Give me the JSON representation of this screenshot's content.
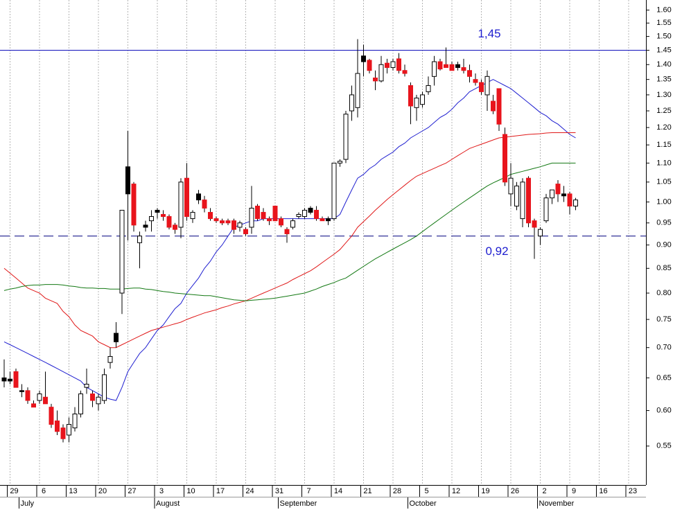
{
  "chart_data": {
    "type": "candlestick",
    "log_scale": true,
    "grid": true,
    "ylim": [
      0.5,
      1.64
    ],
    "yticks": [
      {
        "value": 0.55,
        "label": "0.55"
      },
      {
        "value": 0.6,
        "label": "0.60"
      },
      {
        "value": 0.65,
        "label": "0.65"
      },
      {
        "value": 0.7,
        "label": "0.70"
      },
      {
        "value": 0.75,
        "label": "0.75"
      },
      {
        "value": 0.8,
        "label": "0.80"
      },
      {
        "value": 0.85,
        "label": "0.85"
      },
      {
        "value": 0.9,
        "label": "0.90"
      },
      {
        "value": 0.95,
        "label": "0.95"
      },
      {
        "value": 1.0,
        "label": "1.00"
      },
      {
        "value": 1.05,
        "label": "1.05"
      },
      {
        "value": 1.1,
        "label": "1.10"
      },
      {
        "value": 1.15,
        "label": "1.15"
      },
      {
        "value": 1.2,
        "label": "1.20"
      },
      {
        "value": 1.25,
        "label": "1.25"
      },
      {
        "value": 1.3,
        "label": "1.30"
      },
      {
        "value": 1.35,
        "label": "1.35"
      },
      {
        "value": 1.4,
        "label": "1.40"
      },
      {
        "value": 1.45,
        "label": "1.45"
      },
      {
        "value": 1.5,
        "label": "1.50"
      },
      {
        "value": 1.55,
        "label": "1.55"
      },
      {
        "value": 1.6,
        "label": "1.60"
      }
    ],
    "categories": [
      null,
      "29",
      null,
      null,
      null,
      null,
      "6",
      null,
      null,
      null,
      null,
      "13",
      null,
      null,
      null,
      null,
      "20",
      null,
      null,
      null,
      null,
      "27",
      null,
      null,
      null,
      null,
      "3",
      null,
      null,
      null,
      null,
      "10",
      null,
      null,
      null,
      null,
      "17",
      null,
      null,
      null,
      null,
      "24",
      null,
      null,
      null,
      null,
      "31",
      null,
      null,
      null,
      null,
      "7",
      null,
      null,
      null,
      null,
      "14",
      null,
      null,
      null,
      null,
      "21",
      null,
      null,
      null,
      null,
      "28",
      null,
      null,
      null,
      null,
      "5",
      null,
      null,
      null,
      null,
      "12",
      null,
      null,
      null,
      null,
      "19",
      null,
      null,
      null,
      null,
      "26",
      null,
      null,
      null,
      null,
      "2",
      null,
      null,
      null,
      null,
      "9",
      null,
      null,
      null,
      null,
      "16",
      null,
      null,
      null,
      null,
      "23",
      null,
      null,
      null
    ],
    "months": [
      null,
      null,
      null,
      "July",
      null,
      null,
      null,
      null,
      null,
      null,
      null,
      null,
      null,
      null,
      null,
      null,
      null,
      null,
      null,
      null,
      null,
      null,
      null,
      null,
      null,
      null,
      "August",
      null,
      null,
      null,
      null,
      null,
      null,
      null,
      null,
      null,
      null,
      null,
      null,
      null,
      null,
      null,
      null,
      null,
      null,
      null,
      null,
      "September",
      null,
      null,
      null,
      null,
      null,
      null,
      null,
      null,
      null,
      null,
      null,
      null,
      null,
      null,
      null,
      null,
      null,
      null,
      null,
      null,
      null,
      "October",
      null,
      null,
      null,
      null,
      null,
      null,
      null,
      null,
      null,
      null,
      null,
      null,
      null,
      null,
      null,
      null,
      null,
      null,
      null,
      null,
      null,
      "November",
      null,
      null,
      null,
      null,
      null,
      null,
      null,
      null,
      null,
      null,
      null,
      null,
      null,
      null,
      null,
      null,
      null,
      null
    ],
    "open": [
      0.645,
      0.648,
      0.66,
      0.63,
      0.63,
      0.61,
      0.615,
      0.62,
      0.605,
      0.585,
      0.575,
      0.565,
      0.575,
      0.595,
      0.635,
      0.625,
      0.61,
      0.615,
      0.675,
      0.725,
      0.8,
      1.09,
      1.045,
      0.905,
      0.945,
      0.955,
      0.98,
      0.97,
      0.965,
      0.945,
      0.94,
      1.06,
      0.96,
      1.02,
      1.005,
      0.975,
      0.96,
      0.955,
      0.955,
      0.955,
      0.94,
      0.935,
      0.94,
      0.99,
      0.975,
      0.96,
      0.99,
      0.96,
      0.935,
      0.94,
      0.965,
      0.965,
      0.985,
      0.98,
      0.96,
      0.96,
      0.96,
      1.1,
      1.11,
      1.25,
      1.26,
      1.43,
      1.415,
      1.355,
      1.345,
      1.405,
      1.39,
      1.42,
      1.38,
      1.33,
      1.26,
      1.27,
      1.31,
      1.36,
      1.41,
      1.4,
      1.4,
      1.4,
      1.39,
      1.38,
      1.35,
      1.34,
      1.3,
      1.28,
      1.32,
      1.18,
      1.02,
      0.99,
      0.96,
      1.06,
      0.955,
      0.92,
      0.955,
      1.01,
      1.045,
      1.02,
      1.02,
      0.99,
      null,
      null,
      null,
      null,
      null,
      null,
      null,
      null,
      null,
      null,
      null,
      null
    ],
    "high": [
      0.68,
      0.66,
      0.665,
      0.64,
      0.635,
      0.615,
      0.63,
      0.66,
      0.61,
      0.6,
      0.58,
      0.59,
      0.605,
      0.63,
      0.665,
      0.63,
      0.625,
      0.665,
      0.7,
      0.745,
      0.98,
      1.19,
      1.05,
      0.93,
      0.955,
      0.98,
      0.985,
      0.98,
      0.97,
      0.95,
      1.06,
      1.1,
      0.98,
      1.03,
      1.015,
      0.985,
      0.965,
      0.96,
      0.96,
      0.96,
      0.955,
      0.94,
      1.04,
      0.995,
      0.985,
      0.965,
      0.99,
      0.965,
      0.94,
      0.96,
      0.975,
      0.985,
      0.99,
      0.99,
      0.965,
      0.965,
      1.1,
      1.11,
      1.25,
      1.33,
      1.49,
      1.47,
      1.42,
      1.38,
      1.43,
      1.42,
      1.42,
      1.44,
      1.4,
      1.34,
      1.3,
      1.31,
      1.36,
      1.43,
      1.42,
      1.46,
      1.41,
      1.41,
      1.42,
      1.4,
      1.37,
      1.35,
      1.38,
      1.3,
      1.32,
      1.2,
      1.1,
      1.05,
      1.06,
      1.065,
      0.96,
      0.94,
      1.02,
      1.03,
      1.055,
      1.04,
      1.025,
      1.01,
      null,
      null,
      null,
      null,
      null,
      null,
      null,
      null,
      null,
      null,
      null,
      null
    ],
    "low": [
      0.635,
      0.64,
      0.635,
      0.62,
      0.61,
      0.605,
      0.61,
      0.61,
      0.575,
      0.565,
      0.555,
      0.555,
      0.57,
      0.59,
      0.625,
      0.605,
      0.6,
      0.61,
      0.665,
      0.7,
      0.76,
      0.91,
      0.93,
      0.85,
      0.93,
      0.93,
      0.96,
      0.955,
      0.935,
      0.925,
      0.915,
      0.955,
      0.95,
      0.995,
      0.975,
      0.955,
      0.95,
      0.945,
      0.945,
      0.925,
      0.93,
      0.92,
      0.925,
      0.955,
      0.955,
      0.945,
      0.955,
      0.94,
      0.905,
      0.935,
      0.96,
      0.96,
      0.97,
      0.955,
      0.955,
      0.945,
      0.955,
      1.09,
      1.1,
      1.22,
      1.23,
      1.36,
      1.37,
      1.315,
      1.34,
      1.37,
      1.38,
      1.37,
      1.36,
      1.21,
      1.22,
      1.26,
      1.3,
      1.33,
      1.38,
      1.39,
      1.38,
      1.38,
      1.37,
      1.34,
      1.33,
      1.3,
      1.25,
      1.24,
      1.19,
      1.04,
      0.99,
      0.98,
      0.94,
      0.94,
      0.87,
      0.9,
      0.95,
      0.995,
      1.0,
      1.0,
      0.97,
      0.98,
      null,
      null,
      null,
      null,
      null,
      null,
      null,
      null,
      null,
      null,
      null,
      null
    ],
    "close": [
      0.65,
      0.645,
      0.635,
      0.63,
      0.615,
      0.605,
      0.625,
      0.61,
      0.58,
      0.57,
      0.56,
      0.58,
      0.595,
      0.625,
      0.64,
      0.615,
      0.62,
      0.655,
      0.685,
      0.71,
      0.98,
      1.02,
      0.945,
      0.92,
      0.94,
      0.965,
      0.975,
      0.965,
      0.94,
      0.935,
      1.05,
      0.965,
      0.975,
      1.005,
      0.985,
      0.96,
      0.955,
      0.95,
      0.95,
      0.935,
      0.95,
      0.925,
      0.985,
      0.96,
      0.96,
      0.955,
      0.955,
      0.945,
      0.925,
      0.955,
      0.97,
      0.98,
      0.975,
      0.96,
      0.955,
      0.955,
      1.1,
      1.105,
      1.24,
      1.3,
      1.37,
      1.41,
      1.38,
      1.345,
      1.4,
      1.39,
      1.41,
      1.38,
      1.37,
      1.265,
      1.29,
      1.3,
      1.33,
      1.41,
      1.385,
      1.39,
      1.38,
      1.39,
      1.38,
      1.36,
      1.34,
      1.31,
      1.36,
      1.25,
      1.21,
      1.05,
      1.06,
      1.04,
      1.05,
      0.95,
      0.94,
      0.935,
      1.01,
      1.03,
      1.02,
      1.015,
      0.99,
      1.005,
      null,
      null,
      null,
      null,
      null,
      null,
      null,
      null,
      null,
      null,
      null,
      null
    ],
    "colors": [
      "#000000",
      "#000000",
      "#e8141c",
      "#000000",
      "#e8141c",
      "#e8141c",
      "#ffffff",
      "#e8141c",
      "#e8141c",
      "#e8141c",
      "#e8141c",
      "#ffffff",
      "#ffffff",
      "#ffffff",
      "#ffffff",
      "#e8141c",
      "#ffffff",
      "#ffffff",
      "#ffffff",
      "#000000",
      "#ffffff",
      "#000000",
      "#e8141c",
      "#ffffff",
      "#000000",
      "#ffffff",
      "#000000",
      "#e8141c",
      "#e8141c",
      "#e8141c",
      "#ffffff",
      "#e8141c",
      "#ffffff",
      "#000000",
      "#e8141c",
      "#e8141c",
      "#e8141c",
      "#e8141c",
      "#e8141c",
      "#e8141c",
      "#ffffff",
      "#e8141c",
      "#ffffff",
      "#e8141c",
      "#e8141c",
      "#e8141c",
      "#e8141c",
      "#e8141c",
      "#e8141c",
      "#ffffff",
      "#ffffff",
      "#ffffff",
      "#000000",
      "#e8141c",
      "#e8141c",
      "#000000",
      "#ffffff",
      "#ffffff",
      "#ffffff",
      "#ffffff",
      "#ffffff",
      "#000000",
      "#e8141c",
      "#e8141c",
      "#ffffff",
      "#e8141c",
      "#ffffff",
      "#e8141c",
      "#e8141c",
      "#e8141c",
      "#ffffff",
      "#ffffff",
      "#ffffff",
      "#ffffff",
      "#e8141c",
      "#e8141c",
      "#e8141c",
      "#000000",
      "#e8141c",
      "#e8141c",
      "#e8141c",
      "#e8141c",
      "#ffffff",
      "#e8141c",
      "#e8141c",
      "#e8141c",
      "#ffffff",
      "#ffffff",
      "#ffffff",
      "#e8141c",
      "#e8141c",
      "#ffffff",
      "#ffffff",
      "#ffffff",
      "#e8141c",
      "#000000",
      "#e8141c",
      "#ffffff",
      null,
      null,
      null,
      null,
      null,
      null,
      null,
      null,
      null,
      null,
      null,
      null
    ],
    "lines": [
      {
        "color": "#1f1fd0",
        "values": [
          0.71,
          0.705,
          0.7,
          0.695,
          0.69,
          0.685,
          0.68,
          0.675,
          0.67,
          0.665,
          0.66,
          0.655,
          0.65,
          0.645,
          0.635,
          0.63,
          0.625,
          0.62,
          0.617,
          0.615,
          0.635,
          0.66,
          0.675,
          0.69,
          0.7,
          0.715,
          0.73,
          0.74,
          0.755,
          0.77,
          0.78,
          0.8,
          0.815,
          0.83,
          0.85,
          0.865,
          0.885,
          0.9,
          0.92,
          0.94,
          0.945,
          0.95,
          0.955,
          0.955,
          0.96,
          0.96,
          0.96,
          0.96,
          0.96,
          0.96,
          0.96,
          0.96,
          0.96,
          0.96,
          0.96,
          0.96,
          0.96,
          0.97,
          1.0,
          1.03,
          1.06,
          1.07,
          1.085,
          1.095,
          1.11,
          1.12,
          1.13,
          1.145,
          1.155,
          1.17,
          1.18,
          1.19,
          1.2,
          1.215,
          1.23,
          1.24,
          1.255,
          1.275,
          1.29,
          1.31,
          1.32,
          1.33,
          1.34,
          1.35,
          1.34,
          1.33,
          1.32,
          1.305,
          1.29,
          1.275,
          1.26,
          1.245,
          1.235,
          1.22,
          1.21,
          1.195,
          1.18,
          1.17,
          null,
          null,
          null,
          null,
          null,
          null,
          null,
          null,
          null,
          null,
          null,
          null
        ]
      },
      {
        "color": "#e01818",
        "values": [
          0.85,
          0.84,
          0.83,
          0.82,
          0.81,
          0.805,
          0.8,
          0.79,
          0.785,
          0.78,
          0.765,
          0.755,
          0.74,
          0.73,
          0.725,
          0.72,
          0.71,
          0.705,
          0.7,
          0.7,
          0.705,
          0.71,
          0.715,
          0.72,
          0.725,
          0.73,
          0.733,
          0.736,
          0.739,
          0.742,
          0.745,
          0.75,
          0.754,
          0.758,
          0.762,
          0.765,
          0.768,
          0.772,
          0.775,
          0.779,
          0.782,
          0.785,
          0.79,
          0.795,
          0.8,
          0.805,
          0.81,
          0.815,
          0.82,
          0.827,
          0.833,
          0.839,
          0.845,
          0.853,
          0.862,
          0.871,
          0.88,
          0.89,
          0.905,
          0.92,
          0.94,
          0.953,
          0.966,
          0.98,
          0.993,
          1.006,
          1.018,
          1.03,
          1.042,
          1.054,
          1.065,
          1.072,
          1.079,
          1.086,
          1.093,
          1.1,
          1.11,
          1.12,
          1.13,
          1.14,
          1.146,
          1.152,
          1.158,
          1.164,
          1.17,
          1.172,
          1.174,
          1.176,
          1.178,
          1.18,
          1.181,
          1.182,
          1.184,
          1.185,
          1.185,
          1.185,
          1.185,
          1.185,
          null,
          null,
          null,
          null,
          null,
          null,
          null,
          null,
          null,
          null,
          null,
          null
        ]
      },
      {
        "color": "#127812",
        "values": [
          0.805,
          0.808,
          0.81,
          0.813,
          0.815,
          0.816,
          0.816,
          0.817,
          0.817,
          0.817,
          0.816,
          0.814,
          0.813,
          0.811,
          0.81,
          0.81,
          0.809,
          0.809,
          0.808,
          0.808,
          0.808,
          0.809,
          0.81,
          0.81,
          0.808,
          0.807,
          0.805,
          0.803,
          0.802,
          0.8,
          0.799,
          0.798,
          0.797,
          0.796,
          0.795,
          0.795,
          0.793,
          0.791,
          0.789,
          0.787,
          0.786,
          0.785,
          0.786,
          0.787,
          0.788,
          0.789,
          0.79,
          0.792,
          0.794,
          0.796,
          0.798,
          0.8,
          0.804,
          0.808,
          0.813,
          0.817,
          0.821,
          0.826,
          0.83,
          0.838,
          0.846,
          0.854,
          0.862,
          0.87,
          0.877,
          0.884,
          0.891,
          0.898,
          0.905,
          0.912,
          0.92,
          0.93,
          0.94,
          0.95,
          0.96,
          0.97,
          0.98,
          0.99,
          1.0,
          1.01,
          1.02,
          1.03,
          1.04,
          1.048,
          1.055,
          1.062,
          1.07,
          1.074,
          1.078,
          1.082,
          1.086,
          1.09,
          1.095,
          1.1,
          1.1,
          1.1,
          1.1,
          1.1,
          null,
          null,
          null,
          null,
          null,
          null,
          null,
          null,
          null,
          null,
          null,
          null
        ]
      }
    ],
    "reference_lines": [
      {
        "value": 1.45,
        "label": "1,45",
        "color": "#2020c0",
        "style": "solid"
      },
      {
        "value": 0.92,
        "label": "0,92",
        "color": "#1a1a8c",
        "style": "dashed"
      }
    ]
  }
}
